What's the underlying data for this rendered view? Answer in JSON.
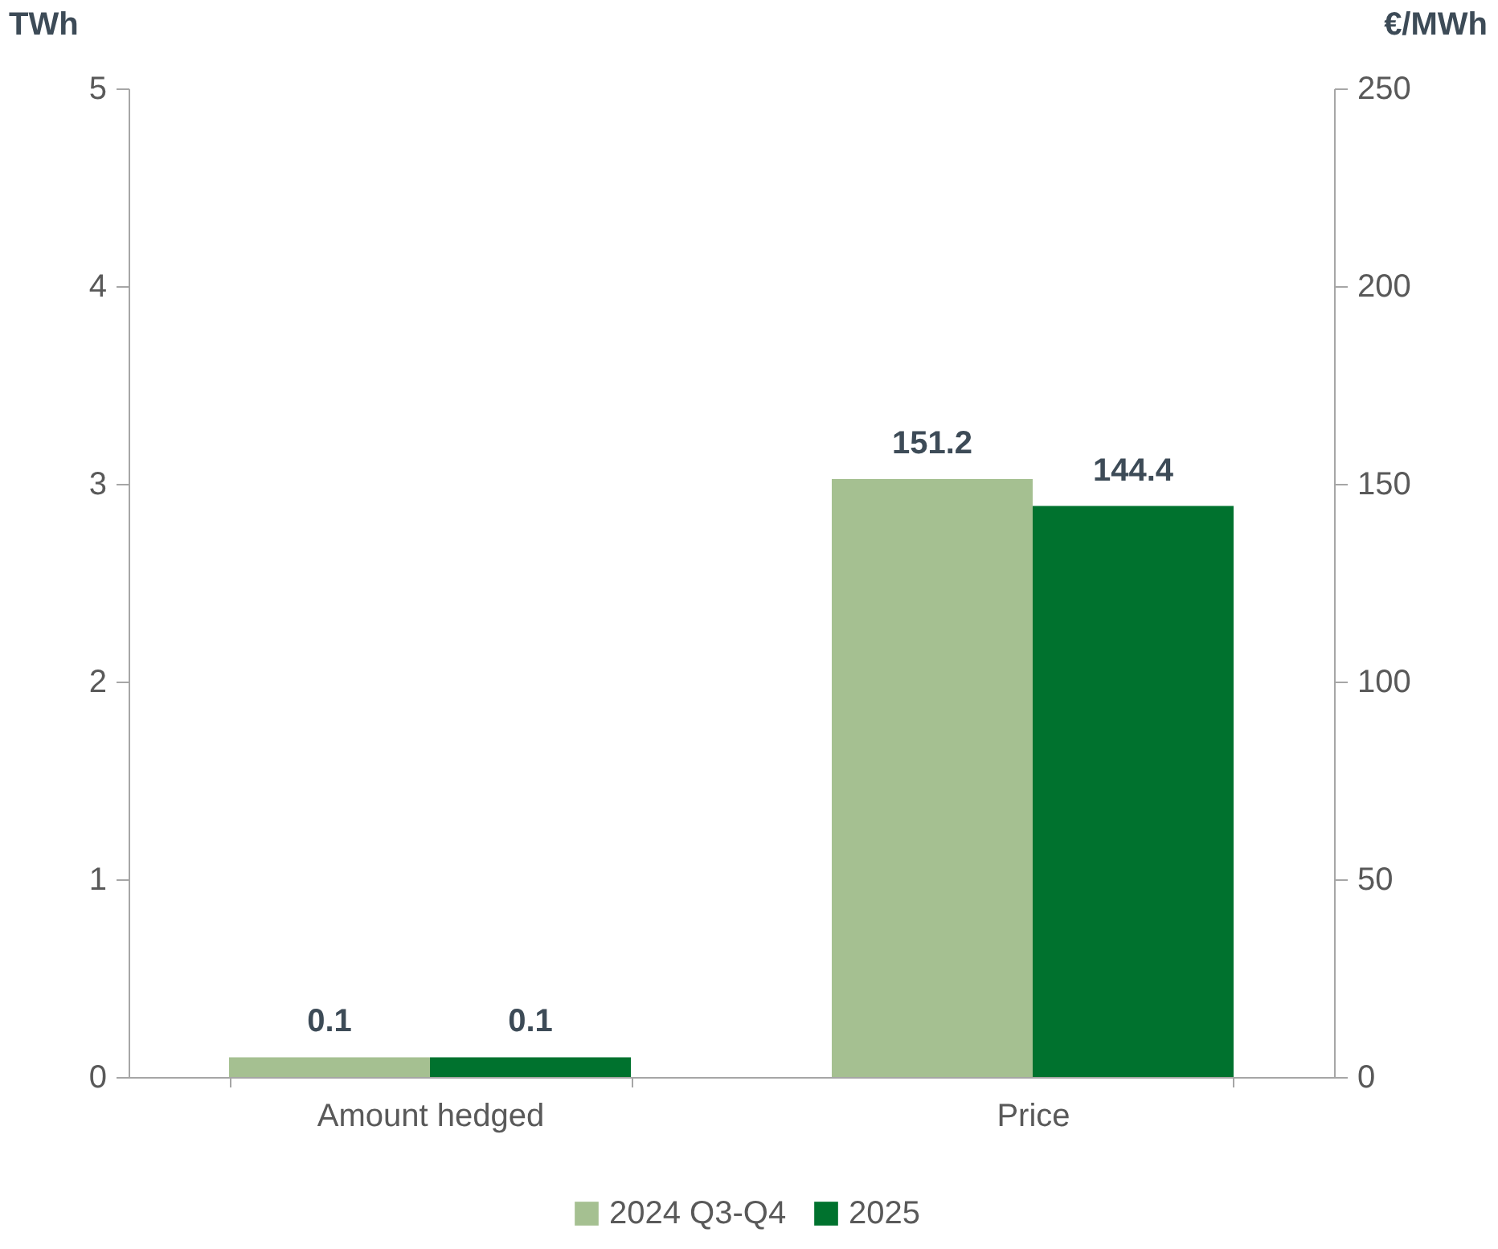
{
  "chart_data": {
    "type": "bar",
    "categories": [
      "Amount hedged",
      "Price"
    ],
    "series": [
      {
        "name": "2024 Q3-Q4",
        "color": "#a5c091",
        "values": [
          0.1,
          null
        ]
      },
      {
        "name": "2025",
        "color": "#00722e",
        "values": [
          0.1,
          null
        ]
      },
      {
        "color": "#a5c091",
        "axis": "y2",
        "values": [
          null,
          151.2
        ]
      },
      {
        "color": "#00722e",
        "axis": "y2",
        "values": [
          null,
          144.4
        ]
      }
    ],
    "ylabel": "TWh",
    "y2label": "€/MWh",
    "ylim": [
      0,
      5
    ],
    "yticks": [
      0,
      1,
      2,
      3,
      4,
      5
    ],
    "y2lim": [
      0,
      250
    ],
    "y2ticks": [
      0,
      50,
      100,
      150,
      200,
      250
    ],
    "data_labels": true,
    "legend": "bottom",
    "grid": false
  }
}
